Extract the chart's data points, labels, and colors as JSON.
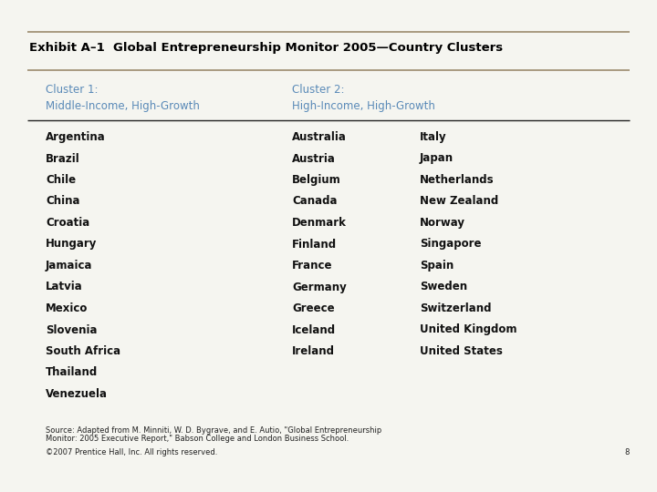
{
  "title": "Exhibit A–1  Global Entrepreneurship Monitor 2005—Country Clusters",
  "title_color": "#000000",
  "title_fontsize": 9.5,
  "cluster1_header1": "Cluster 1:",
  "cluster1_header2": "Middle-Income, High-Growth",
  "cluster2_header1": "Cluster 2:",
  "cluster2_header2": "High-Income, High-Growth",
  "header_color": "#5a8ab8",
  "cluster1_countries": [
    "Argentina",
    "Brazil",
    "Chile",
    "China",
    "Croatia",
    "Hungary",
    "Jamaica",
    "Latvia",
    "Mexico",
    "Slovenia",
    "South Africa",
    "Thailand",
    "Venezuela"
  ],
  "cluster2_col1": [
    "Australia",
    "Austria",
    "Belgium",
    "Canada",
    "Denmark",
    "Finland",
    "France",
    "Germany",
    "Greece",
    "Iceland",
    "Ireland"
  ],
  "cluster2_col2": [
    "Italy",
    "Japan",
    "Netherlands",
    "New Zealand",
    "Norway",
    "Singapore",
    "Spain",
    "Sweden",
    "Switzerland",
    "United Kingdom",
    "United States"
  ],
  "source_line1": "Source: Adapted from M. Minniti, W. D. Bygrave, and E. Autio, \"Global Entrepreneurship",
  "source_line2": "Monitor: 2005 Executive Report,\" Babson College and London Business School.",
  "copyright_text": "©2007 Prentice Hall, Inc. All rights reserved.",
  "page_number": "8",
  "background_color": "#f5f5f0",
  "header_line_color": "#9b8b6e",
  "divider_line_color": "#222222",
  "country_fontsize": 8.5,
  "header_fontsize": 8.5,
  "source_fontsize": 6.0,
  "copyright_fontsize": 6.0
}
